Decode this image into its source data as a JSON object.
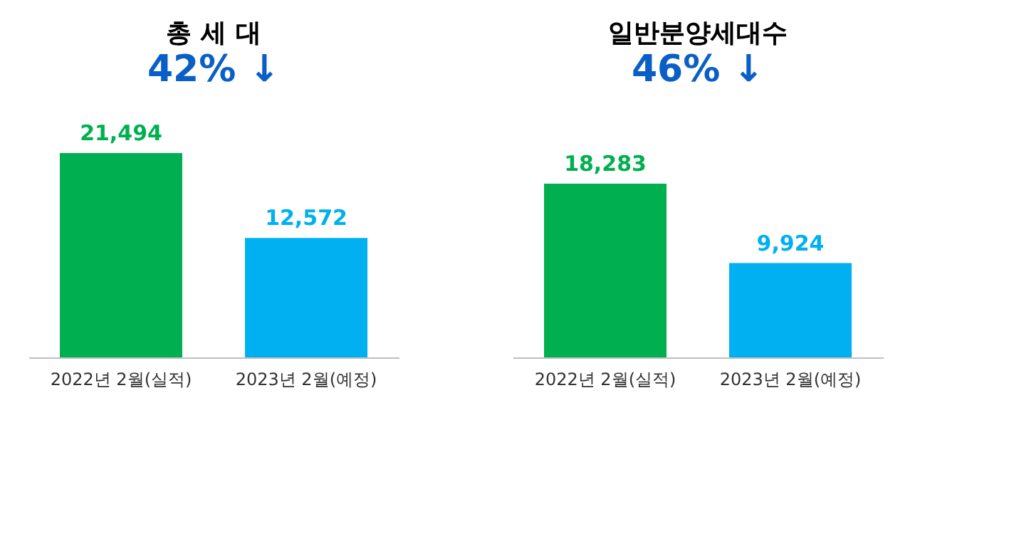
{
  "chart_data": [
    {
      "type": "bar",
      "title": "총 세 대",
      "subtitle": "42% ↓",
      "categories": [
        "2022년 2월(실적)",
        "2023년 2월(예정)"
      ],
      "values": [
        21494,
        12572
      ],
      "colors": [
        "#00b050",
        "#00b0f0"
      ],
      "value_labels": [
        "21,494",
        "12,572"
      ]
    },
    {
      "type": "bar",
      "title": "일반분양세대수",
      "subtitle": "46% ↓",
      "categories": [
        "2022년 2월(실적)",
        "2023년 2월(예정)"
      ],
      "values": [
        18283,
        9924
      ],
      "colors": [
        "#00b050",
        "#00b0f0"
      ],
      "value_labels": [
        "18,283",
        "9,924"
      ]
    }
  ]
}
